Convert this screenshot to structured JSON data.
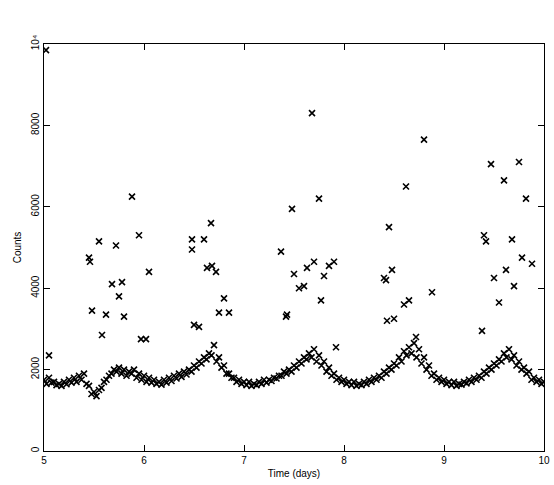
{
  "chart_data": {
    "type": "scatter",
    "x_label": "Time (days)",
    "y_label": "Counts",
    "marker": "x",
    "color": "#000000",
    "grid": false,
    "xlim": [
      5,
      10
    ],
    "xticks": [
      5,
      6,
      7,
      8,
      9,
      10
    ],
    "ylim": [
      0,
      10000
    ],
    "yticks": [
      0,
      2000,
      4000,
      6000,
      8000,
      {
        "value": 10000,
        "label": "10⁴"
      }
    ],
    "x": [
      5.0,
      5.05,
      5.1,
      5.15,
      5.2,
      5.25,
      5.3,
      5.35,
      5.4,
      5.45,
      5.5,
      5.55,
      5.6,
      5.65,
      5.7,
      5.75,
      5.8,
      5.85,
      5.9,
      5.95,
      6.0,
      6.05,
      6.1,
      6.15,
      6.2,
      6.25,
      6.3,
      6.35,
      6.4,
      6.45,
      6.5,
      6.55,
      6.6,
      6.65,
      6.7,
      6.75,
      6.8,
      6.85,
      6.9,
      6.95,
      7.0,
      7.05,
      7.1,
      7.15,
      7.2,
      7.25,
      7.3,
      7.35,
      7.4,
      7.45,
      7.5,
      7.55,
      7.6,
      7.65,
      7.7,
      7.75,
      7.8,
      7.85,
      7.9,
      7.95,
      8.0,
      8.05,
      8.1,
      8.15,
      8.2,
      8.25,
      8.3,
      8.35,
      8.4,
      8.45,
      8.5,
      8.55,
      8.6,
      8.65,
      8.7,
      8.75,
      8.8,
      8.85,
      8.9,
      8.95,
      9.0,
      9.05,
      9.1,
      9.15,
      9.2,
      9.25,
      9.3,
      9.35,
      9.4,
      9.45,
      9.5,
      9.55,
      9.6,
      9.65,
      9.7,
      9.75,
      9.8,
      9.85,
      9.9,
      9.95,
      10.0,
      5.025,
      5.075,
      5.125,
      5.175,
      5.225,
      5.275,
      5.325,
      5.375,
      5.425,
      5.475,
      5.525,
      5.575,
      5.625,
      5.675,
      5.725,
      5.775,
      5.825,
      5.875,
      5.925,
      5.975,
      6.025,
      6.075,
      6.125,
      6.175,
      6.225,
      6.275,
      6.325,
      6.375,
      6.425,
      6.475,
      6.525,
      6.575,
      6.625,
      6.675,
      6.725,
      6.775,
      6.825,
      6.875,
      6.925,
      6.975,
      7.025,
      7.075,
      7.125,
      7.175,
      7.225,
      7.275,
      7.325,
      7.375,
      7.425,
      7.475,
      7.525,
      7.575,
      7.625,
      7.675,
      7.725,
      7.775,
      7.825,
      7.875,
      7.925,
      7.975,
      8.025,
      8.075,
      8.125,
      8.175,
      8.225,
      8.275,
      8.325,
      8.375,
      8.425,
      8.475,
      8.525,
      8.575,
      8.625,
      8.675,
      8.725,
      8.775,
      8.825,
      8.875,
      8.925,
      8.975,
      9.025,
      9.075,
      9.125,
      9.175,
      9.225,
      9.275,
      9.325,
      9.375,
      9.425,
      9.475,
      9.525,
      9.575,
      9.625,
      9.675,
      9.725,
      9.775,
      9.825,
      9.875,
      9.925,
      9.975,
      5.02,
      5.05,
      5.45,
      5.46,
      5.48,
      5.55,
      5.58,
      5.62,
      5.68,
      5.72,
      5.75,
      5.78,
      5.8,
      5.88,
      5.95,
      5.97,
      6.02,
      6.05,
      6.48,
      6.48,
      6.5,
      6.55,
      6.6,
      6.63,
      6.67,
      6.68,
      6.72,
      6.75,
      6.8,
      6.85,
      7.37,
      7.42,
      7.43,
      7.48,
      7.5,
      7.55,
      7.6,
      7.63,
      7.68,
      7.7,
      7.75,
      7.77,
      7.8,
      7.85,
      7.9,
      7.92,
      8.4,
      8.42,
      8.43,
      8.45,
      8.48,
      8.5,
      8.6,
      8.62,
      8.65,
      8.72,
      8.8,
      8.88,
      9.38,
      9.4,
      9.42,
      9.47,
      9.5,
      9.55,
      9.6,
      9.62,
      9.68,
      9.7,
      9.75,
      9.78,
      9.82,
      9.88
    ],
    "values": [
      1750,
      1800,
      1700,
      1650,
      1700,
      1750,
      1800,
      1850,
      1900,
      1600,
      1450,
      1500,
      1700,
      1850,
      2000,
      2050,
      2000,
      1950,
      2000,
      1900,
      1850,
      1800,
      1750,
      1700,
      1750,
      1800,
      1850,
      1900,
      1950,
      2000,
      2100,
      2200,
      2300,
      2400,
      2600,
      2300,
      2100,
      1900,
      1800,
      1750,
      1700,
      1700,
      1650,
      1700,
      1750,
      1750,
      1800,
      1850,
      1950,
      2000,
      2100,
      2200,
      2300,
      2400,
      2500,
      2350,
      2200,
      2050,
      1900,
      1800,
      1750,
      1700,
      1700,
      1650,
      1700,
      1750,
      1800,
      1850,
      1950,
      2050,
      2150,
      2300,
      2450,
      2550,
      2650,
      2500,
      2300,
      2100,
      1900,
      1800,
      1750,
      1700,
      1700,
      1650,
      1700,
      1750,
      1800,
      1850,
      1950,
      2050,
      2150,
      2250,
      2400,
      2500,
      2350,
      2200,
      2050,
      1950,
      1800,
      1750,
      1700,
      1650,
      1680,
      1620,
      1600,
      1640,
      1680,
      1700,
      1750,
      1650,
      1400,
      1350,
      1550,
      1750,
      1900,
      1950,
      1900,
      1850,
      1900,
      1800,
      1750,
      1700,
      1680,
      1650,
      1630,
      1680,
      1720,
      1780,
      1820,
      1880,
      1950,
      2050,
      2150,
      2250,
      2350,
      2200,
      2050,
      1900,
      1800,
      1700,
      1650,
      1620,
      1600,
      1620,
      1650,
      1680,
      1720,
      1780,
      1850,
      1900,
      1950,
      2050,
      2150,
      2250,
      2300,
      2200,
      2100,
      1950,
      1850,
      1750,
      1700,
      1650,
      1620,
      1600,
      1620,
      1650,
      1700,
      1750,
      1800,
      1900,
      2000,
      2100,
      2200,
      2350,
      2400,
      2300,
      2150,
      2000,
      1850,
      1750,
      1700,
      1650,
      1620,
      1600,
      1630,
      1660,
      1700,
      1750,
      1800,
      1900,
      2000,
      2100,
      2200,
      2300,
      2250,
      2100,
      2000,
      1900,
      1750,
      1700,
      1650,
      9850,
      2350,
      4750,
      4650,
      3450,
      5150,
      2850,
      3350,
      4100,
      5050,
      3800,
      4150,
      3300,
      6250,
      5300,
      2750,
      2750,
      4400,
      5200,
      4950,
      3100,
      3050,
      5200,
      4500,
      5600,
      4550,
      4400,
      3400,
      3750,
      3400,
      4900,
      3300,
      3350,
      5950,
      4350,
      4000,
      4050,
      4500,
      8300,
      4650,
      6200,
      3700,
      4300,
      4550,
      4650,
      2550,
      4250,
      4200,
      3200,
      5500,
      4450,
      3250,
      3600,
      6500,
      3700,
      2800,
      7650,
      3900,
      2950,
      5300,
      5150,
      7050,
      4250,
      3650,
      6650,
      4450,
      5200,
      4050,
      7100,
      4750,
      6200,
      4600
    ]
  }
}
